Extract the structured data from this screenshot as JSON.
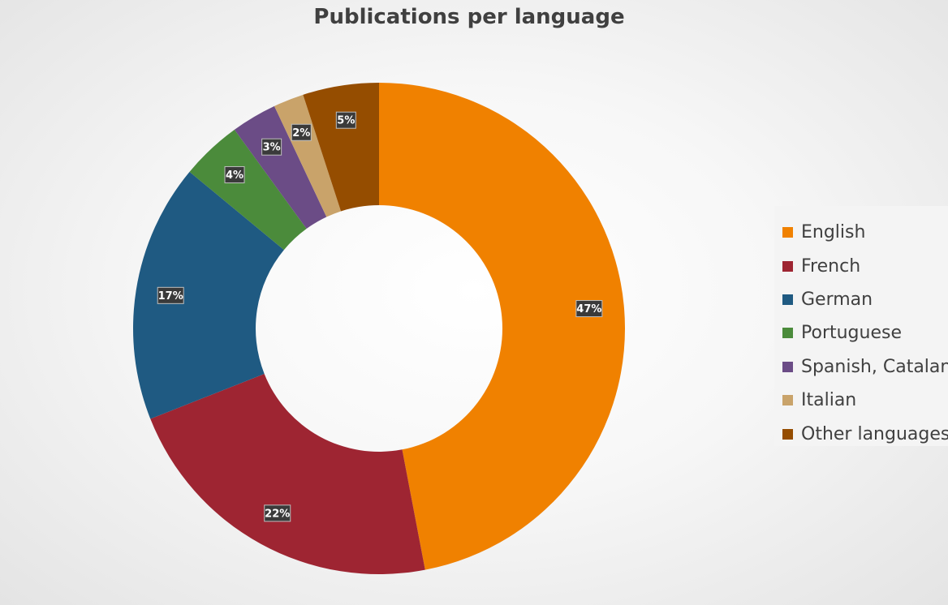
{
  "chart_data": {
    "type": "pie",
    "title": "Publications per language",
    "categories": [
      "English",
      "French",
      "German",
      "Portuguese",
      "Spanish, Catalan",
      "Italian",
      "Other languages"
    ],
    "values": [
      47,
      22,
      17,
      4,
      3,
      2,
      5
    ],
    "data_labels": [
      "47%",
      "22%",
      "17%",
      "4%",
      "3%",
      "2%",
      "5%"
    ],
    "colors": [
      "#f08100",
      "#9e2532",
      "#1f5a82",
      "#4b8b3b",
      "#6b4c86",
      "#c9a36a",
      "#954d00"
    ],
    "donut": true,
    "legend_position": "right"
  }
}
